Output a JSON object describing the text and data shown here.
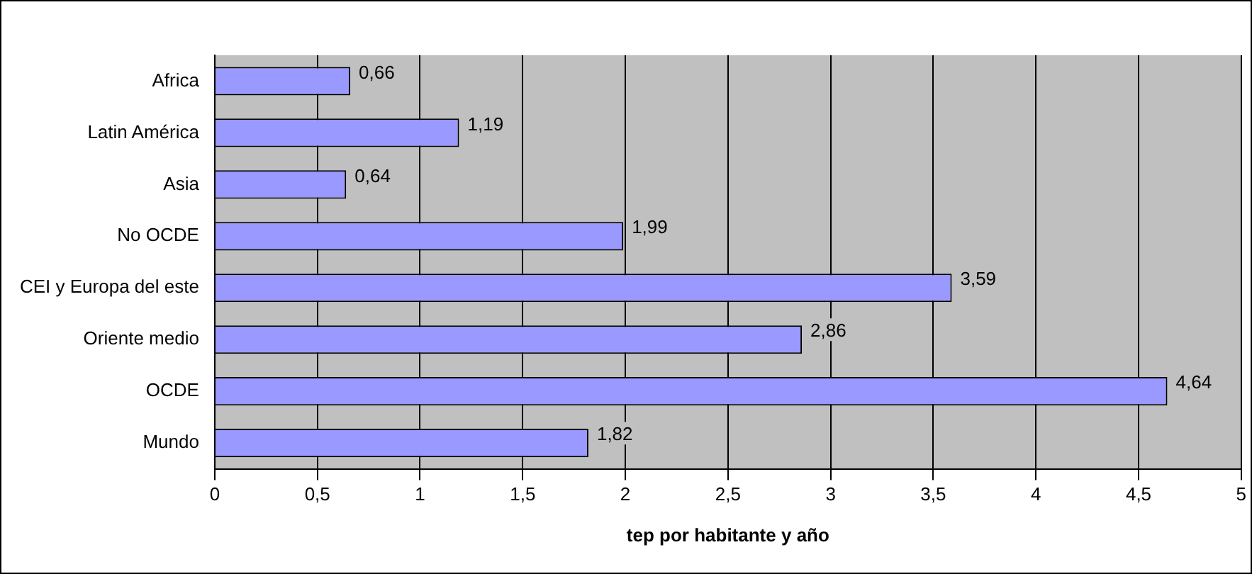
{
  "chart_data": {
    "type": "bar",
    "orientation": "horizontal",
    "xlabel": "tep por habitante y año",
    "categories": [
      "Africa",
      "Latin América",
      "Asia",
      "No OCDE",
      "CEI y Europa del este",
      "Oriente medio",
      "OCDE",
      "Mundo"
    ],
    "values": [
      0.66,
      1.19,
      0.64,
      1.99,
      3.59,
      2.86,
      4.64,
      1.82
    ],
    "value_labels": [
      "0,66",
      "1,19",
      "0,64",
      "1,99",
      "3,59",
      "2,86",
      "4,64",
      "1,82"
    ],
    "color": "#9999ff",
    "xlim": [
      0,
      5
    ],
    "xticks": [
      0,
      {
        "value": 0.5,
        "label": "0,5"
      },
      1,
      {
        "value": 1.5,
        "label": "1,5"
      },
      2,
      {
        "value": 2.5,
        "label": "2,5"
      },
      3,
      {
        "value": 3.5,
        "label": "3,5"
      },
      4,
      {
        "value": 4.5,
        "label": "4,5"
      },
      5
    ],
    "grid": "x",
    "legend": false
  }
}
